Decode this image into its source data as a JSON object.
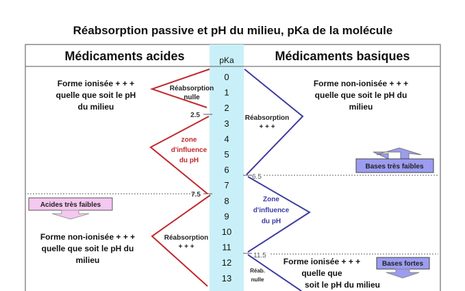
{
  "title": "Réabsorption passive et pH du milieu, pKa de la molécule",
  "header": {
    "left": "Médicaments acides",
    "center": "pKa",
    "right": "Médicaments basiques"
  },
  "pka_values": [
    "0",
    "1",
    "2",
    "3",
    "4",
    "5",
    "6",
    "7",
    "8",
    "9",
    "10",
    "11",
    "12",
    "13"
  ],
  "thresholds": {
    "acid_low": "2.5",
    "acid_high": "7.5",
    "base_low": "6.5",
    "base_high": "11.5"
  },
  "acids": {
    "top_form": [
      "Forme ionisée + + +",
      "quelle que soit le pH",
      "du milieu"
    ],
    "top_reab": [
      "Réabsorption",
      "nulle"
    ],
    "zone": [
      "zone",
      "d'influence",
      "du pH"
    ],
    "weak_label": "Acides très faibles",
    "bottom_form": [
      "Forme non-ionisée + + +",
      "quelle que soit le pH du",
      "milieu"
    ],
    "bottom_reab": [
      "Réabsorption",
      "+ + +"
    ]
  },
  "bases": {
    "top_form": [
      "Forme non-ionisée + + +",
      "quelle que soit le pH du",
      "milieu"
    ],
    "top_reab": [
      "Réabsorption",
      "+ + +"
    ],
    "weak_label": "Bases très faibles",
    "zone": [
      "Zone",
      "d'influence",
      "du pH"
    ],
    "bottom_form": [
      "Forme ionisée + + +",
      "quelle que",
      "soit le pH du milieu"
    ],
    "bottom_reab": [
      "Réab.",
      "nulle"
    ],
    "strong_label": "Bases fortes"
  },
  "colors": {
    "acid": "#c0282c",
    "base": "#3c3ca0",
    "pka_band": "#c9f0f8",
    "acid_box": "#f4c8f0",
    "base_box": "#9c9cf0"
  }
}
